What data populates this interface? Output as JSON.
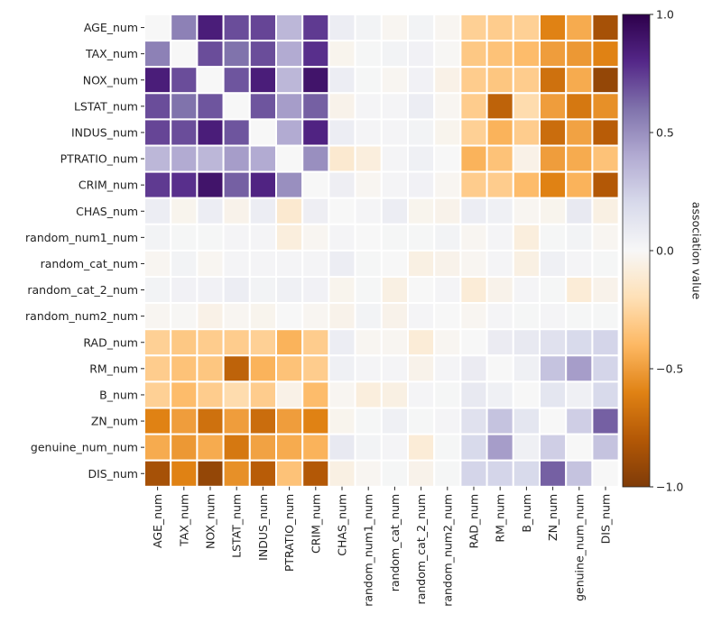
{
  "chart_data": {
    "type": "heatmap",
    "title": "",
    "xlabel": "",
    "ylabel": "",
    "colorbar": {
      "label": "association value",
      "range": [
        -1.0,
        1.0
      ],
      "ticks": [
        1.0,
        0.5,
        0.0,
        -0.5,
        -1.0
      ],
      "tick_labels": [
        "1.0",
        "0.5",
        "0.0",
        "−0.5",
        "−1.0"
      ],
      "colormap": "PuOr",
      "colormap_stops": [
        "#7f3b08",
        "#b35806",
        "#e08214",
        "#fdb863",
        "#fee0b6",
        "#f7f7f7",
        "#d8daeb",
        "#b2abd2",
        "#8073ac",
        "#542788",
        "#2d004b"
      ]
    },
    "grid": false,
    "cell_border_color": "#ffffff",
    "row_labels": [
      "AGE_num",
      "TAX_num",
      "NOX_num",
      "LSTAT_num",
      "INDUS_num",
      "PTRATIO_num",
      "CRIM_num",
      "CHAS_num",
      "random_num1_num",
      "random_cat_num",
      "random_cat_2_num",
      "random_num2_num",
      "RAD_num",
      "RM_num",
      "B_num",
      "ZN_num",
      "genuine_num_num",
      "DIS_num"
    ],
    "col_labels": [
      "AGE_num",
      "TAX_num",
      "NOX_num",
      "LSTAT_num",
      "INDUS_num",
      "PTRATIO_num",
      "CRIM_num",
      "CHAS_num",
      "random_num1_num",
      "random_cat_num",
      "random_cat_2_num",
      "random_num2_num",
      "RAD_num",
      "RM_num",
      "B_num",
      "ZN_num",
      "genuine_num_num",
      "DIS_num"
    ],
    "values": [
      [
        0.0,
        0.55,
        0.85,
        0.7,
        0.72,
        0.35,
        0.75,
        0.07,
        0.03,
        -0.02,
        0.03,
        -0.02,
        -0.28,
        -0.3,
        -0.28,
        -0.6,
        -0.45,
        -0.85
      ],
      [
        0.55,
        0.0,
        0.7,
        0.6,
        0.7,
        0.4,
        0.78,
        -0.03,
        0.01,
        0.03,
        0.04,
        -0.01,
        -0.32,
        -0.35,
        -0.38,
        -0.5,
        -0.52,
        -0.6
      ],
      [
        0.85,
        0.7,
        0.0,
        0.68,
        0.85,
        0.35,
        0.9,
        0.07,
        0.01,
        -0.02,
        0.04,
        -0.05,
        -0.3,
        -0.33,
        -0.3,
        -0.68,
        -0.45,
        -0.92
      ],
      [
        0.7,
        0.6,
        0.68,
        0.0,
        0.68,
        0.45,
        0.65,
        -0.04,
        0.02,
        0.02,
        0.07,
        -0.02,
        -0.3,
        -0.75,
        -0.22,
        -0.5,
        -0.65,
        -0.55
      ],
      [
        0.72,
        0.7,
        0.85,
        0.68,
        0.0,
        0.4,
        0.82,
        0.07,
        0.02,
        0.02,
        0.03,
        -0.03,
        -0.28,
        -0.42,
        -0.3,
        -0.7,
        -0.48,
        -0.78
      ],
      [
        0.35,
        0.4,
        0.35,
        0.45,
        0.4,
        0.0,
        0.5,
        -0.12,
        -0.08,
        0.02,
        0.05,
        0.0,
        -0.42,
        -0.35,
        -0.05,
        -0.5,
        -0.45,
        -0.35
      ],
      [
        0.75,
        0.78,
        0.9,
        0.65,
        0.82,
        0.5,
        0.0,
        0.06,
        -0.02,
        0.02,
        0.04,
        -0.02,
        -0.3,
        -0.3,
        -0.38,
        -0.6,
        -0.42,
        -0.8
      ],
      [
        0.07,
        -0.03,
        0.07,
        -0.04,
        0.07,
        -0.12,
        0.06,
        0.0,
        0.02,
        0.07,
        -0.03,
        -0.04,
        0.07,
        0.05,
        -0.02,
        -0.03,
        0.1,
        -0.06
      ],
      [
        0.03,
        0.01,
        0.01,
        0.02,
        0.02,
        -0.08,
        -0.02,
        0.02,
        0.0,
        0.01,
        0.01,
        0.03,
        -0.02,
        0.02,
        -0.08,
        0.01,
        0.03,
        -0.02
      ],
      [
        -0.02,
        0.03,
        -0.02,
        0.02,
        0.02,
        0.02,
        0.02,
        0.07,
        0.01,
        0.0,
        -0.06,
        -0.04,
        -0.02,
        0.02,
        -0.06,
        0.05,
        0.02,
        0.01
      ],
      [
        0.03,
        0.04,
        0.04,
        0.07,
        0.03,
        0.05,
        0.04,
        -0.03,
        0.01,
        -0.06,
        0.0,
        0.02,
        -0.1,
        -0.04,
        0.02,
        0.01,
        -0.1,
        -0.04
      ],
      [
        -0.02,
        -0.01,
        -0.05,
        -0.02,
        -0.03,
        0.0,
        -0.02,
        -0.04,
        0.03,
        -0.04,
        0.02,
        0.0,
        -0.02,
        0.02,
        0.01,
        0.02,
        0.01,
        0.01
      ],
      [
        -0.28,
        -0.32,
        -0.3,
        -0.3,
        -0.28,
        -0.42,
        -0.3,
        0.07,
        -0.02,
        -0.02,
        -0.1,
        -0.02,
        0.0,
        0.08,
        0.1,
        0.15,
        0.2,
        0.22
      ],
      [
        -0.3,
        -0.35,
        -0.33,
        -0.75,
        -0.42,
        -0.35,
        -0.3,
        0.05,
        0.02,
        0.02,
        -0.04,
        0.02,
        0.08,
        0.0,
        0.05,
        0.3,
        0.45,
        0.22
      ],
      [
        -0.28,
        -0.38,
        -0.3,
        -0.22,
        -0.3,
        -0.05,
        -0.38,
        -0.02,
        -0.08,
        -0.06,
        0.02,
        0.01,
        0.1,
        0.05,
        0.0,
        0.12,
        0.05,
        0.2
      ],
      [
        -0.6,
        -0.5,
        -0.68,
        -0.5,
        -0.7,
        -0.5,
        -0.6,
        -0.03,
        0.01,
        0.05,
        0.01,
        0.02,
        0.15,
        0.3,
        0.12,
        0.0,
        0.25,
        0.65
      ],
      [
        -0.45,
        -0.52,
        -0.45,
        -0.65,
        -0.48,
        -0.45,
        -0.42,
        0.1,
        0.03,
        0.02,
        -0.1,
        0.01,
        0.2,
        0.45,
        0.05,
        0.25,
        0.0,
        0.3
      ],
      [
        -0.85,
        -0.6,
        -0.92,
        -0.55,
        -0.78,
        -0.35,
        -0.8,
        -0.06,
        -0.02,
        0.01,
        -0.04,
        0.01,
        0.22,
        0.22,
        0.2,
        0.65,
        0.3,
        0.0
      ]
    ]
  }
}
